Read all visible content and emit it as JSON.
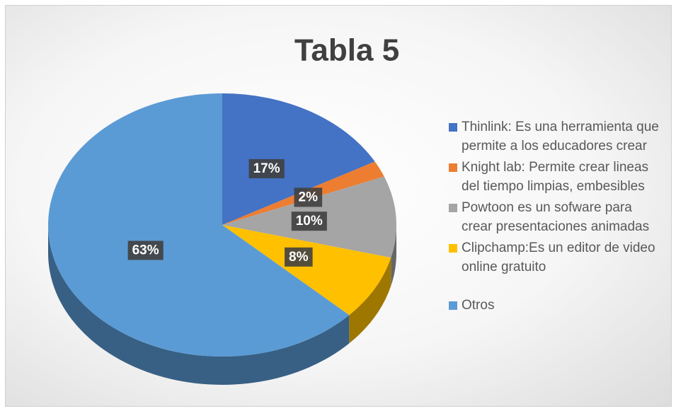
{
  "chart_data": {
    "type": "pie3d",
    "title": "Tabla 5",
    "categories": [
      "Thinlink: Es una herramienta que permite a los educadores crear",
      "Knight lab: Permite crear lineas del tiempo limpias, embesibles",
      "Powtoon es un sofware para crear presentaciones animadas",
      "Clipchamp:Es un editor de video online gratuito",
      "Otros"
    ],
    "values": [
      17,
      2,
      10,
      8,
      63
    ],
    "value_labels": [
      "17%",
      "2%",
      "10%",
      "8%",
      "63%"
    ],
    "colors": [
      "#4472c4",
      "#ed7d31",
      "#a5a5a5",
      "#ffc000",
      "#5b9bd5"
    ],
    "legend": "right"
  }
}
